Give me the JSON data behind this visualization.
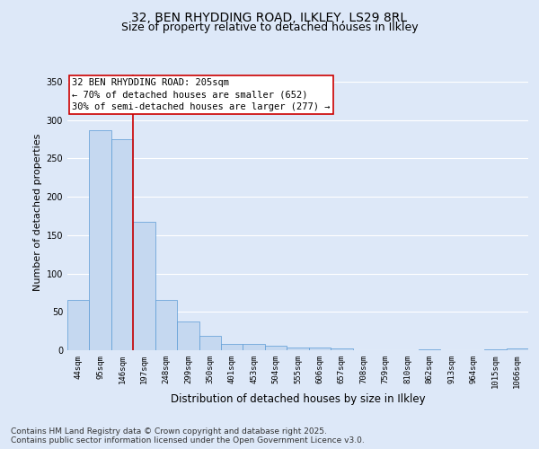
{
  "title1": "32, BEN RHYDDING ROAD, ILKLEY, LS29 8RL",
  "title2": "Size of property relative to detached houses in Ilkley",
  "xlabel": "Distribution of detached houses by size in Ilkley",
  "ylabel": "Number of detached properties",
  "categories": [
    "44sqm",
    "95sqm",
    "146sqm",
    "197sqm",
    "248sqm",
    "299sqm",
    "350sqm",
    "401sqm",
    "453sqm",
    "504sqm",
    "555sqm",
    "606sqm",
    "657sqm",
    "708sqm",
    "759sqm",
    "810sqm",
    "862sqm",
    "913sqm",
    "964sqm",
    "1015sqm",
    "1066sqm"
  ],
  "values": [
    65,
    287,
    275,
    168,
    65,
    37,
    19,
    8,
    8,
    6,
    4,
    3,
    2,
    0,
    0,
    0,
    1,
    0,
    0,
    1,
    2
  ],
  "bar_color": "#c5d8f0",
  "bar_edge_color": "#5b9bd5",
  "vline_color": "#cc0000",
  "annotation_text": "32 BEN RHYDDING ROAD: 205sqm\n← 70% of detached houses are smaller (652)\n30% of semi-detached houses are larger (277) →",
  "annotation_box_color": "#ffffff",
  "annotation_box_edge": "#cc0000",
  "ylim": [
    0,
    360
  ],
  "yticks": [
    0,
    50,
    100,
    150,
    200,
    250,
    300,
    350
  ],
  "bg_color": "#dde8f8",
  "plot_bg_color": "#dde8f8",
  "footer": "Contains HM Land Registry data © Crown copyright and database right 2025.\nContains public sector information licensed under the Open Government Licence v3.0.",
  "grid_color": "#ffffff",
  "title_fontsize": 10,
  "subtitle_fontsize": 9,
  "axis_label_fontsize": 8,
  "tick_fontsize": 6.5,
  "annotation_fontsize": 7.5,
  "footer_fontsize": 6.5
}
